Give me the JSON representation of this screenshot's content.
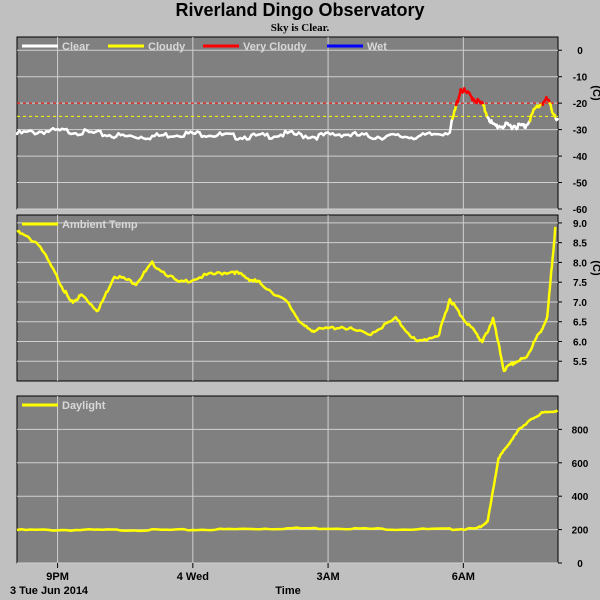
{
  "title": "Riverland Dingo Observatory",
  "subtitle": "Sky is Clear.",
  "colors": {
    "background": "#c0c0c0",
    "panel": "#808080",
    "clear": "#ffffff",
    "cloudy": "#ffff00",
    "very_cloudy": "#ff0000",
    "wet": "#0000ff",
    "ambient": "#ffff00",
    "daylight": "#ffff00"
  },
  "chart_data": [
    {
      "type": "line",
      "name": "sky",
      "legend": [
        "Clear",
        "Cloudy",
        "Very Cloudy",
        "Wet"
      ],
      "unit_label": "(C)",
      "ylim": [
        -60,
        5
      ],
      "yticks": [
        0,
        -10,
        -20,
        -30,
        -40,
        -50,
        -60
      ],
      "thresholds": [
        {
          "value": -20,
          "series": "Very Cloudy"
        },
        {
          "value": -25,
          "series": "Cloudy"
        }
      ],
      "xlim": [
        0,
        10
      ],
      "x": [
        0,
        0.5,
        1,
        1.5,
        2,
        2.5,
        3,
        3.5,
        4,
        4.5,
        5,
        5.5,
        6,
        6.5,
        7,
        7.5,
        8,
        8.2,
        8.4,
        8.6,
        8.8,
        9,
        9.2,
        9.4,
        9.6,
        9.8,
        9.99
      ],
      "y": [
        -31,
        -30,
        -30,
        -31,
        -32,
        -32,
        -31,
        -31,
        -32,
        -32,
        -31,
        -32,
        -31,
        -32,
        -32,
        -32,
        -30,
        -14,
        -17,
        -20,
        -28,
        -28,
        -28,
        -28,
        -21,
        -18,
        -26
      ]
    },
    {
      "type": "line",
      "name": "ambient",
      "legend": [
        "Ambient Temp"
      ],
      "unit_label": "(C)",
      "ylim": [
        5.0,
        9.2
      ],
      "yticks": [
        5.5,
        6.0,
        6.5,
        7.0,
        7.5,
        8.0,
        8.5,
        9.0
      ],
      "xlim": [
        0,
        10
      ],
      "x": [
        0,
        0.4,
        0.8,
        1.0,
        1.2,
        1.5,
        1.8,
        2.2,
        2.5,
        3.0,
        3.5,
        4.0,
        4.3,
        4.5,
        5.0,
        5.3,
        5.5,
        6.0,
        6.5,
        7.0,
        7.4,
        7.8,
        8.0,
        8.2,
        8.5,
        8.6,
        8.8,
        9.0,
        9.2,
        9.4,
        9.6,
        9.8,
        9.95
      ],
      "y": [
        8.8,
        8.5,
        7.5,
        7.0,
        7.2,
        6.8,
        7.7,
        7.5,
        8.0,
        7.5,
        7.7,
        7.8,
        7.6,
        7.5,
        7.0,
        6.4,
        6.3,
        6.4,
        6.2,
        6.6,
        6.0,
        6.2,
        7.1,
        6.7,
        6.2,
        6.0,
        6.6,
        5.3,
        5.5,
        5.6,
        6.1,
        6.6,
        8.9
      ]
    },
    {
      "type": "line",
      "name": "daylight",
      "legend": [
        "Daylight"
      ],
      "unit_label": "",
      "ylim": [
        0,
        1000
      ],
      "yticks": [
        0,
        200,
        400,
        600,
        800
      ],
      "xlim": [
        0,
        10
      ],
      "x": [
        0,
        1,
        2,
        3,
        4,
        5,
        6,
        7,
        8,
        8.5,
        8.7,
        8.9,
        9.1,
        9.3,
        9.5,
        9.7,
        9.99
      ],
      "y": [
        200,
        200,
        200,
        200,
        205,
        210,
        210,
        205,
        205,
        208,
        250,
        630,
        720,
        810,
        860,
        900,
        915
      ]
    }
  ],
  "x_axis": {
    "label": "Time",
    "date": "3 Tue Jun 2014",
    "ticks": [
      {
        "label": "9PM",
        "x": 0.75
      },
      {
        "label": "4 Wed",
        "x": 3.25
      },
      {
        "label": "3AM",
        "x": 5.75
      },
      {
        "label": "6AM",
        "x": 8.25
      }
    ]
  }
}
